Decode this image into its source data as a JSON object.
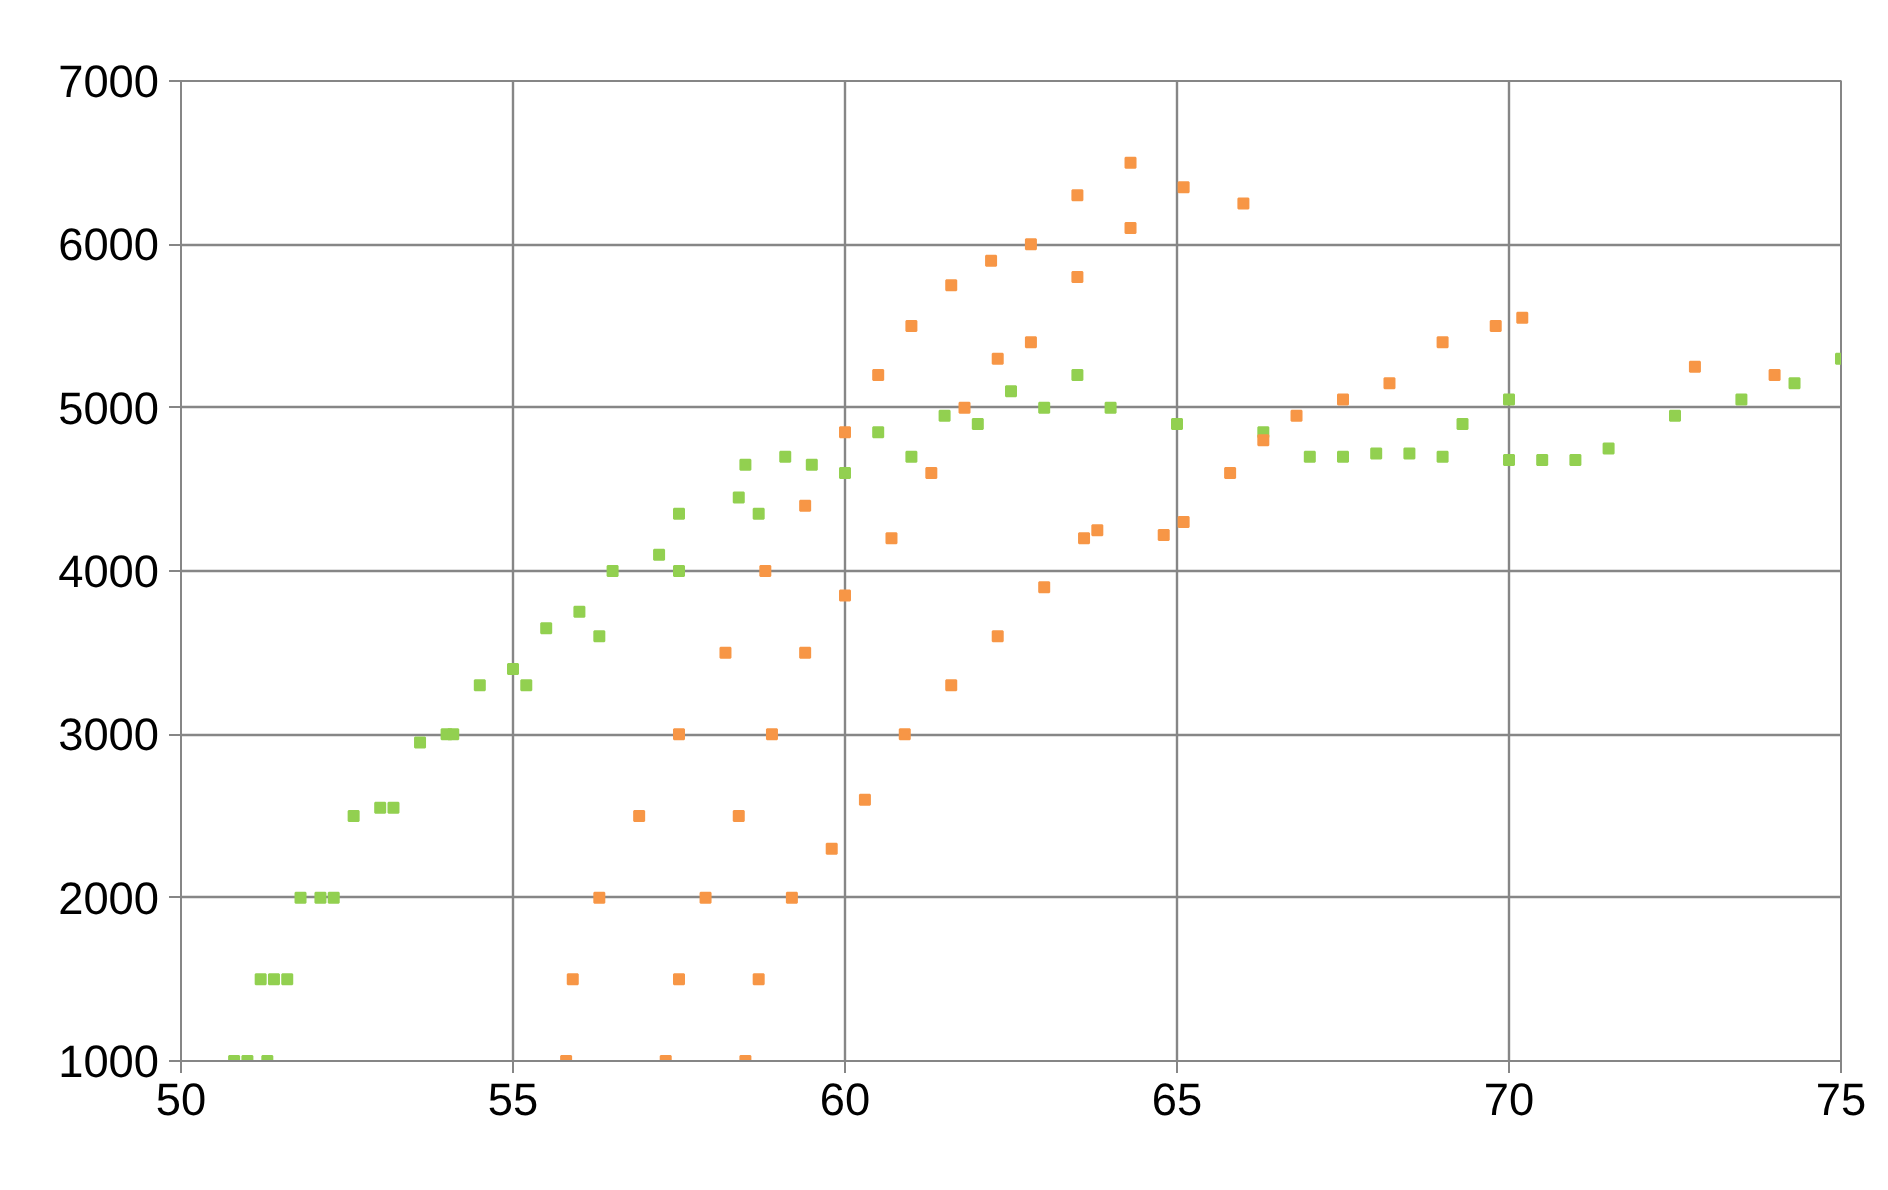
{
  "chart_data": {
    "type": "scatter",
    "marker": "square",
    "grid": true,
    "xlim": [
      50,
      75
    ],
    "ylim": [
      1000,
      7000
    ],
    "xticks": [
      50,
      55,
      60,
      65,
      70,
      75
    ],
    "yticks": [
      1000,
      2000,
      3000,
      4000,
      5000,
      6000,
      7000
    ],
    "series": [
      {
        "color": "#92d050",
        "x": [
          50.8,
          51.2,
          51.8,
          52.6,
          53.6,
          54.5,
          55.5,
          56.5,
          57.5,
          58.5,
          59.1
        ],
        "values": [
          1000,
          1500,
          2000,
          2500,
          2950,
          3300,
          3650,
          4000,
          4350,
          4650,
          4700
        ]
      },
      {
        "color": "#92d050",
        "x": [
          51.0,
          51.4,
          52.1,
          53.0,
          54.0,
          55.0,
          56.0,
          57.2,
          58.4,
          59.5,
          60.5,
          61.5,
          62.5,
          63.5
        ],
        "values": [
          1000,
          1500,
          2000,
          2550,
          3000,
          3400,
          3750,
          4100,
          4450,
          4650,
          4850,
          4950,
          5100,
          5200
        ]
      },
      {
        "color": "#92d050",
        "x": [
          51.3,
          51.6,
          52.3,
          53.2,
          54.1,
          55.2,
          56.3,
          57.5,
          58.7,
          60.0,
          61.0,
          62.0,
          63.0,
          64.0,
          65.0,
          66.3,
          67.5,
          68.5,
          69.3,
          70.0
        ],
        "values": [
          1000,
          1500,
          2000,
          2550,
          3000,
          3300,
          3600,
          4000,
          4350,
          4600,
          4700,
          4900,
          5000,
          5000,
          4900,
          4850,
          4700,
          4720,
          4900,
          5050
        ]
      },
      {
        "color": "#92d050",
        "x": [
          67.0,
          68.0,
          69.0,
          70.0,
          70.5,
          71.0,
          71.5,
          72.5,
          73.5,
          74.3,
          75.0
        ],
        "values": [
          4700,
          4720,
          4700,
          4680,
          4680,
          4680,
          4750,
          4950,
          5050,
          5150,
          5300
        ]
      },
      {
        "color": "#f79646",
        "x": [
          55.8,
          55.9,
          56.3,
          56.9,
          57.5,
          58.2,
          58.8,
          59.4,
          60.0,
          60.5,
          61.0,
          61.6,
          62.2,
          62.8,
          63.5,
          64.3
        ],
        "values": [
          1000,
          1500,
          2000,
          2500,
          3000,
          3500,
          4000,
          4400,
          4850,
          5200,
          5500,
          5750,
          5900,
          6000,
          6300,
          6500
        ]
      },
      {
        "color": "#f79646",
        "x": [
          57.3,
          57.5,
          57.9,
          58.4,
          58.9,
          59.4,
          60.0,
          60.7,
          61.3,
          61.8,
          62.3,
          62.8,
          63.5,
          64.3,
          65.1,
          66.0
        ],
        "values": [
          1000,
          1500,
          2000,
          2500,
          3000,
          3500,
          3850,
          4200,
          4600,
          5000,
          5300,
          5400,
          5800,
          6100,
          6350,
          6250
        ]
      },
      {
        "color": "#f79646",
        "x": [
          58.5,
          58.7,
          59.2,
          59.8,
          60.3,
          60.9,
          61.6,
          62.3,
          63.0,
          63.6,
          63.8,
          64.8,
          65.1,
          65.8,
          66.3,
          66.8,
          67.5,
          68.2,
          69.0,
          69.8,
          70.2,
          72.8,
          74.0
        ],
        "values": [
          1000,
          1500,
          2000,
          2300,
          2600,
          3000,
          3300,
          3600,
          3900,
          4200,
          4250,
          4220,
          4300,
          4600,
          4800,
          4950,
          5050,
          5150,
          5400,
          5500,
          5550,
          5250,
          5200
        ]
      }
    ]
  }
}
